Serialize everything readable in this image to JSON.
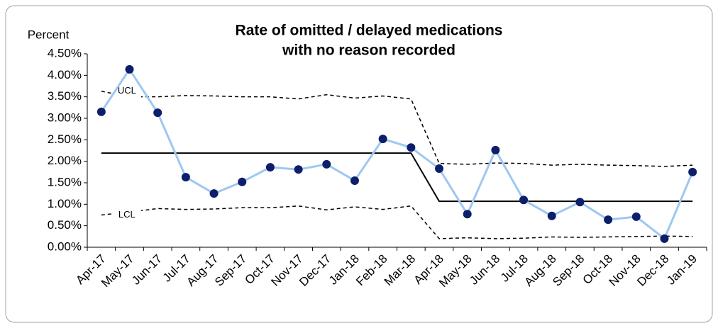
{
  "chart_data": {
    "type": "line",
    "title": [
      "Rate of omitted / delayed medications",
      "with no reason recorded"
    ],
    "y_label": "Percent",
    "categories": [
      "Apr-17",
      "May-17",
      "Jun-17",
      "Jul-17",
      "Aug-17",
      "Sep-17",
      "Oct-17",
      "Nov-17",
      "Dec-17",
      "Jan-18",
      "Feb-18",
      "Mar-18",
      "Apr-18",
      "May-18",
      "Jun-18",
      "Jul-18",
      "Aug-18",
      "Sep-18",
      "Oct-18",
      "Nov-18",
      "Dec-18",
      "Jan-19"
    ],
    "ylim": [
      0,
      4.5
    ],
    "yticks": [
      {
        "value": 0,
        "label": "0.00%"
      },
      {
        "value": 0.5,
        "label": "0.50%"
      },
      {
        "value": 1,
        "label": "1.00%"
      },
      {
        "value": 1.5,
        "label": "1.50%"
      },
      {
        "value": 2,
        "label": "2.00%"
      },
      {
        "value": 2.5,
        "label": "2.50%"
      },
      {
        "value": 3,
        "label": "3.00%"
      },
      {
        "value": 3.5,
        "label": "3.50%"
      },
      {
        "value": 4,
        "label": "4.00%"
      },
      {
        "value": 4.5,
        "label": "4.50%"
      }
    ],
    "series": [
      {
        "color": "#000000",
        "dash": false,
        "markers": false,
        "values": [
          2.19,
          2.19,
          2.19,
          2.19,
          2.19,
          2.19,
          2.19,
          2.19,
          2.19,
          2.19,
          2.19,
          2.19,
          1.07,
          1.07,
          1.07,
          1.07,
          1.07,
          1.07,
          1.07,
          1.07,
          1.07,
          1.07
        ]
      },
      {
        "name": "UCL",
        "color": "#000000",
        "dash": true,
        "markers": false,
        "values": [
          3.63,
          3.5,
          3.5,
          3.53,
          3.52,
          3.5,
          3.5,
          3.45,
          3.55,
          3.47,
          3.52,
          3.45,
          1.95,
          1.93,
          1.96,
          1.95,
          1.91,
          1.93,
          1.91,
          1.9,
          1.88,
          1.91
        ]
      },
      {
        "name": "LCL",
        "color": "#000000",
        "dash": true,
        "markers": false,
        "values": [
          0.75,
          0.82,
          0.9,
          0.88,
          0.89,
          0.92,
          0.92,
          0.96,
          0.87,
          0.94,
          0.88,
          0.96,
          0.2,
          0.22,
          0.2,
          0.21,
          0.24,
          0.23,
          0.24,
          0.25,
          0.26,
          0.25
        ]
      },
      {
        "color": "#9dc8f0",
        "marker_color": "#0d1f6b",
        "dash": false,
        "markers": true,
        "values": [
          3.15,
          4.14,
          3.13,
          1.63,
          1.25,
          1.52,
          1.86,
          1.81,
          1.93,
          1.55,
          2.52,
          2.32,
          1.83,
          0.77,
          2.26,
          1.1,
          0.73,
          1.05,
          0.64,
          0.71,
          0.2,
          1.75
        ]
      }
    ]
  }
}
